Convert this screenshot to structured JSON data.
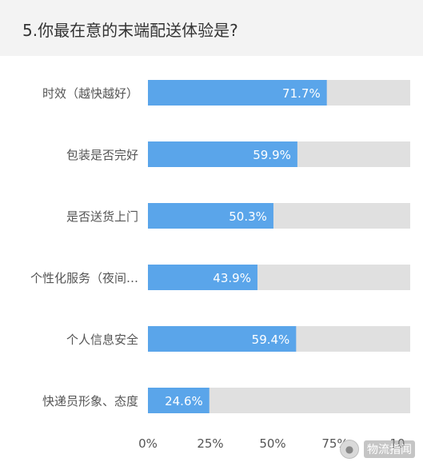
{
  "title": "5.你最在意的末端配送体验是?",
  "watermark": {
    "icon": "wechat-icon",
    "text": "物流指闻"
  },
  "colors": {
    "bar": "#5aa5ea",
    "track": "#e0e0e0",
    "label": "#555555",
    "value_text": "#ffffff",
    "header_bg": "#f3f3f3"
  },
  "chart_data": {
    "type": "bar",
    "orientation": "horizontal",
    "categories": [
      "时效（越快越好）",
      "包装是否完好",
      "是否送货上门",
      "个性化服务（夜间…",
      "个人信息安全",
      "快递员形象、态度"
    ],
    "values": [
      71.7,
      59.9,
      50.3,
      43.9,
      59.4,
      24.6
    ],
    "value_labels": [
      "71.7%",
      "59.9%",
      "50.3%",
      "43.9%",
      "59.4%",
      "24.6%"
    ],
    "xlim": [
      0,
      100
    ],
    "x_ticks": [
      "0%",
      "25%",
      "50%",
      "75%",
      "10"
    ],
    "grid": true
  }
}
